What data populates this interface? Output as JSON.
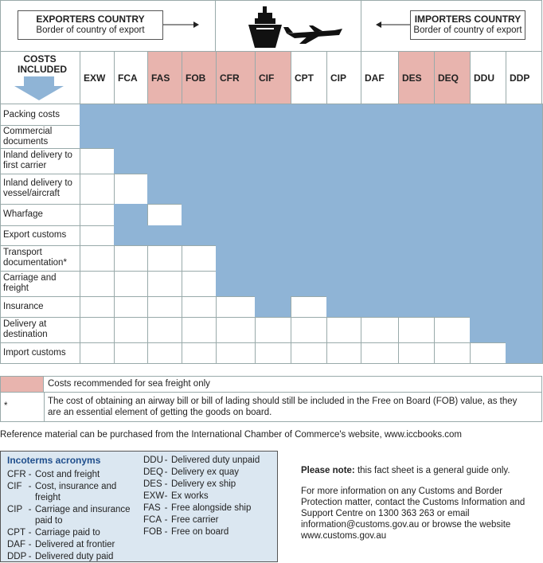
{
  "header": {
    "exporter": {
      "title": "EXPORTERS COUNTRY",
      "subtitle": "Border of country of export"
    },
    "importer": {
      "title": "IMPORTERS COUNTRY",
      "subtitle": "Border of country of export"
    },
    "costs_heading": "COSTS INCLUDED"
  },
  "table": {
    "columns": [
      {
        "code": "EXW",
        "sea_freight_only": false
      },
      {
        "code": "FCA",
        "sea_freight_only": false
      },
      {
        "code": "FAS",
        "sea_freight_only": true
      },
      {
        "code": "FOB",
        "sea_freight_only": true
      },
      {
        "code": "CFR",
        "sea_freight_only": true
      },
      {
        "code": "CIF",
        "sea_freight_only": true
      },
      {
        "code": "CPT",
        "sea_freight_only": false
      },
      {
        "code": "CIP",
        "sea_freight_only": false
      },
      {
        "code": "DAF",
        "sea_freight_only": false
      },
      {
        "code": "DES",
        "sea_freight_only": true
      },
      {
        "code": "DEQ",
        "sea_freight_only": true
      },
      {
        "code": "DDU",
        "sea_freight_only": false
      },
      {
        "code": "DDP",
        "sea_freight_only": false
      }
    ],
    "rows": [
      {
        "label": "Packing costs",
        "covered": [
          true,
          true,
          true,
          true,
          true,
          true,
          true,
          true,
          true,
          true,
          true,
          true,
          true
        ]
      },
      {
        "label": "Commercial documents",
        "covered": [
          true,
          true,
          true,
          true,
          true,
          true,
          true,
          true,
          true,
          true,
          true,
          true,
          true
        ]
      },
      {
        "label": "Inland delivery to first carrier",
        "covered": [
          false,
          true,
          true,
          true,
          true,
          true,
          true,
          true,
          true,
          true,
          true,
          true,
          true
        ]
      },
      {
        "label": "Inland delivery to vessel/aircraft",
        "covered": [
          false,
          false,
          true,
          true,
          true,
          true,
          true,
          true,
          true,
          true,
          true,
          true,
          true
        ]
      },
      {
        "label": "Wharfage",
        "covered": [
          false,
          true,
          false,
          true,
          true,
          true,
          true,
          true,
          true,
          true,
          true,
          true,
          true
        ]
      },
      {
        "label": "Export customs",
        "covered": [
          false,
          true,
          true,
          true,
          true,
          true,
          true,
          true,
          true,
          true,
          true,
          true,
          true
        ]
      },
      {
        "label": "Transport documentation*",
        "covered": [
          false,
          false,
          false,
          false,
          true,
          true,
          true,
          true,
          true,
          true,
          true,
          true,
          true
        ]
      },
      {
        "label": "Carriage and freight",
        "covered": [
          false,
          false,
          false,
          false,
          true,
          true,
          true,
          true,
          true,
          true,
          true,
          true,
          true
        ]
      },
      {
        "label": "Insurance",
        "covered": [
          false,
          false,
          false,
          false,
          false,
          true,
          false,
          true,
          true,
          true,
          true,
          true,
          true
        ]
      },
      {
        "label": "Delivery at destination",
        "covered": [
          false,
          false,
          false,
          false,
          false,
          false,
          false,
          false,
          false,
          false,
          false,
          true,
          true
        ]
      },
      {
        "label": "Import customs",
        "covered": [
          false,
          false,
          false,
          false,
          false,
          false,
          false,
          false,
          false,
          false,
          false,
          false,
          true
        ]
      }
    ]
  },
  "legend": {
    "sea_freight": "Costs recommended for sea freight only",
    "footnote_mark": "*",
    "footnote": "The cost of obtaining an airway bill or bill of lading should still be included in the Free on Board (FOB) value, as they are an essential element of getting the goods on board."
  },
  "reference": "Reference material can be purchased from the International Chamber of Commerce's website, www.iccbooks.com",
  "acronyms": {
    "title": "Incoterms acronyms",
    "separator": "-",
    "left": [
      {
        "code": "CFR",
        "desc": "Cost and freight"
      },
      {
        "code": "CIF",
        "desc": "Cost, insurance and freight"
      },
      {
        "code": "CIP",
        "desc": "Carriage and insurance paid to"
      },
      {
        "code": "CPT",
        "desc": "Carriage paid to"
      },
      {
        "code": "DAF",
        "desc": "Delivered at frontier"
      },
      {
        "code": "DDP",
        "desc": "Delivered duty paid"
      }
    ],
    "right": [
      {
        "code": "DDU",
        "desc": "Delivered duty unpaid"
      },
      {
        "code": "DEQ",
        "desc": "Delivery ex quay"
      },
      {
        "code": "DES",
        "desc": "Delivery ex ship"
      },
      {
        "code": "EXW",
        "desc": "Ex works"
      },
      {
        "code": "FAS",
        "desc": "Free alongside ship"
      },
      {
        "code": "FCA",
        "desc": "Free carrier"
      },
      {
        "code": "FOB",
        "desc": "Free on board"
      }
    ]
  },
  "note": {
    "label": "Please note:",
    "text": "this fact sheet is a general guide only.",
    "more": "For more information on any Customs and Border Protection matter, contact the Customs Information and Support Centre on 1300 363 263 or email information@customs.gov.au or browse the website www.customs.gov.au"
  }
}
